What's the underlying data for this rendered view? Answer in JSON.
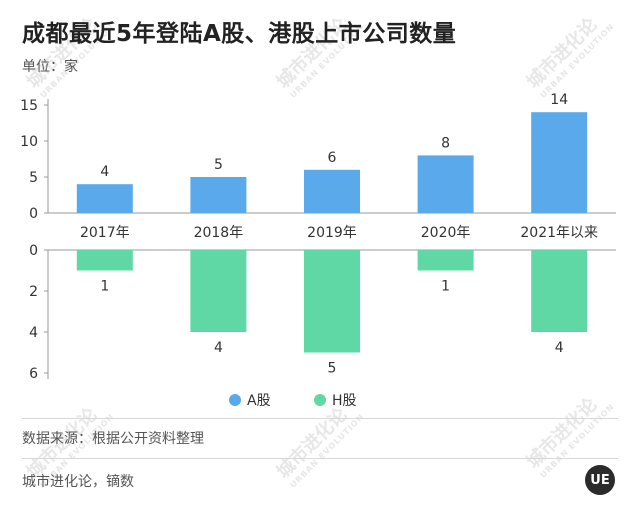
{
  "title": "成都最近5年登陆A股、港股上市公司数量",
  "unit_label": "单位：家",
  "source": "数据来源：根据公开资料整理",
  "credit": "城市进化论，镝数",
  "logo_text": "UE",
  "watermark": {
    "cn": "城市进化论",
    "en": "URBAN EVOLUTION"
  },
  "colors": {
    "a_share": "#5aaaeb",
    "h_share": "#5fd8a6"
  },
  "chart_data": {
    "type": "bar",
    "categories": [
      "2017年",
      "2018年",
      "2019年",
      "2020年",
      "2021年以来"
    ],
    "series": [
      {
        "name": "A股",
        "values": [
          4,
          5,
          6,
          8,
          14
        ]
      },
      {
        "name": "H股",
        "values": [
          1,
          4,
          5,
          1,
          4
        ]
      }
    ],
    "top_axis": {
      "ylim": [
        0,
        15
      ],
      "ticks": [
        0,
        5,
        10,
        15
      ]
    },
    "bottom_axis": {
      "ylim": [
        0,
        6
      ],
      "ticks": [
        0,
        2,
        4,
        6
      ],
      "inverted": true
    },
    "legend": {
      "position": "bottom-center",
      "items": [
        "A股",
        "H股"
      ]
    },
    "grid": false
  }
}
